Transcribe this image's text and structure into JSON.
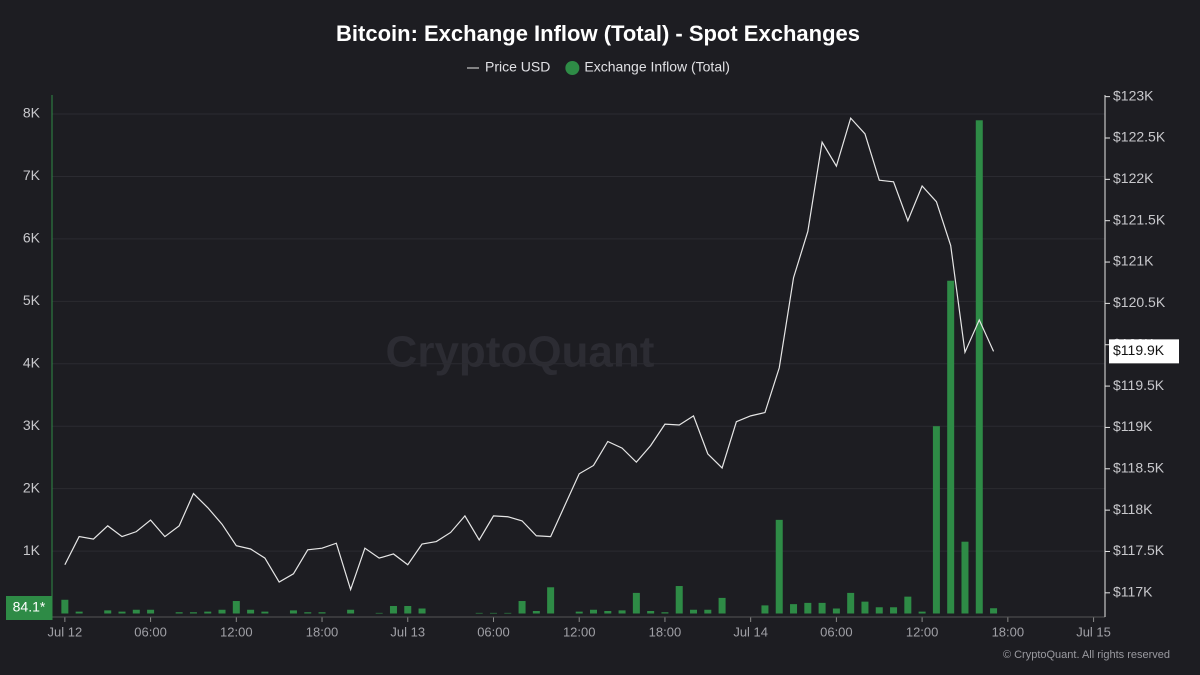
{
  "chart_data": {
    "type": "bar-line",
    "title": "Bitcoin: Exchange Inflow (Total) - Spot Exchanges",
    "watermark": "CryptoQuant",
    "copyright": "© CryptoQuant. All rights reserved",
    "x": [
      0,
      1,
      2,
      3,
      4,
      5,
      6,
      7,
      8,
      9,
      10,
      11,
      12,
      13,
      14,
      15,
      16,
      17,
      18,
      19,
      20,
      21,
      22,
      23,
      24,
      25,
      26,
      27,
      28,
      29,
      30,
      31,
      32,
      33,
      34,
      35,
      36,
      37,
      38,
      39,
      40,
      41,
      42,
      43,
      44,
      45,
      46,
      47,
      48,
      49,
      50,
      51,
      52,
      53,
      54,
      55,
      56,
      57,
      58,
      59,
      60,
      61,
      62,
      63,
      64,
      65
    ],
    "xlim": [
      -0.9,
      72.8
    ],
    "xticks": [
      {
        "value": 0,
        "label": "Jul 12"
      },
      {
        "value": 6,
        "label": "06:00"
      },
      {
        "value": 12,
        "label": "12:00"
      },
      {
        "value": 18,
        "label": "18:00"
      },
      {
        "value": 24,
        "label": "Jul 13"
      },
      {
        "value": 30,
        "label": "06:00"
      },
      {
        "value": 36,
        "label": "12:00"
      },
      {
        "value": 42,
        "label": "18:00"
      },
      {
        "value": 48,
        "label": "Jul 14"
      },
      {
        "value": 54,
        "label": "06:00"
      },
      {
        "value": 60,
        "label": "12:00"
      },
      {
        "value": 66,
        "label": "18:00"
      },
      {
        "value": 72,
        "label": "Jul 15"
      }
    ],
    "ylim": [
      0,
      8305
    ],
    "yticks": [
      {
        "value": 1000,
        "label": "1K"
      },
      {
        "value": 2000,
        "label": "2K"
      },
      {
        "value": 3000,
        "label": "3K"
      },
      {
        "value": 4000,
        "label": "4K"
      },
      {
        "value": 5000,
        "label": "5K"
      },
      {
        "value": 6000,
        "label": "6K"
      },
      {
        "value": 7000,
        "label": "7K"
      },
      {
        "value": 8000,
        "label": "8K"
      }
    ],
    "y2lim": [
      116.75,
      123.02
    ],
    "y2ticks": [
      {
        "value": 117,
        "label": "$117K"
      },
      {
        "value": 117.5,
        "label": "$117.5K"
      },
      {
        "value": 118,
        "label": "$118K"
      },
      {
        "value": 118.5,
        "label": "$118.5K"
      },
      {
        "value": 119,
        "label": "$119K"
      },
      {
        "value": 119.5,
        "label": "$119.5K"
      },
      {
        "value": 120,
        "label": "$120K"
      },
      {
        "value": 120.5,
        "label": "$120.5K"
      },
      {
        "value": 121,
        "label": "$121K"
      },
      {
        "value": 121.5,
        "label": "$121.5K"
      },
      {
        "value": 122,
        "label": "$122K"
      },
      {
        "value": 122.5,
        "label": "$122.5K"
      },
      {
        "value": 123,
        "label": "$123K"
      }
    ],
    "grid": true,
    "series": [
      {
        "name": "Price USD",
        "type": "line",
        "axis": "y2",
        "color": "#e6e6e6",
        "values": [
          117.34,
          117.68,
          117.65,
          117.81,
          117.68,
          117.74,
          117.88,
          117.68,
          117.81,
          118.2,
          118.03,
          117.83,
          117.57,
          117.53,
          117.42,
          117.13,
          117.23,
          117.52,
          117.54,
          117.6,
          117.04,
          117.54,
          117.42,
          117.47,
          117.34,
          117.59,
          117.62,
          117.73,
          117.93,
          117.64,
          117.93,
          117.92,
          117.87,
          117.69,
          117.68,
          118.06,
          118.44,
          118.54,
          118.83,
          118.75,
          118.58,
          118.78,
          119.04,
          119.03,
          119.14,
          118.68,
          118.51,
          119.07,
          119.14,
          119.18,
          119.72,
          120.81,
          121.37,
          122.45,
          122.16,
          122.74,
          122.55,
          121.99,
          121.97,
          121.5,
          121.92,
          121.73,
          121.2,
          119.91,
          120.3,
          119.92
        ],
        "last_label": "$119.9K"
      },
      {
        "name": "Exchange Inflow (Total)",
        "type": "bar",
        "axis": "y",
        "color": "#2e8b46",
        "values": [
          220,
          30,
          0,
          50,
          30,
          60,
          60,
          0,
          20,
          20,
          30,
          60,
          200,
          60,
          30,
          0,
          50,
          20,
          20,
          0,
          60,
          0,
          10,
          120,
          120,
          80,
          0,
          0,
          0,
          10,
          10,
          10,
          200,
          40,
          420,
          0,
          30,
          60,
          40,
          50,
          330,
          40,
          20,
          440,
          60,
          60,
          250,
          0,
          0,
          130,
          1500,
          150,
          170,
          170,
          80,
          330,
          190,
          100,
          100,
          270,
          30,
          3000,
          5330,
          1150,
          7900,
          84.1
        ],
        "last_label": "84.1*"
      }
    ]
  }
}
